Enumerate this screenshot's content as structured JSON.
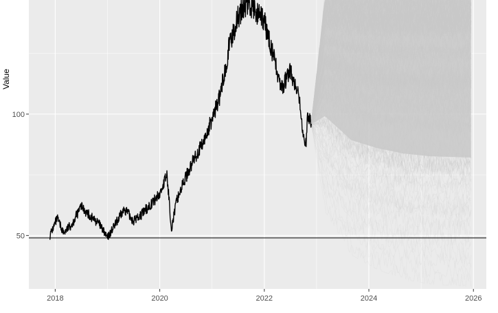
{
  "chart_data": {
    "type": "line",
    "title": "",
    "xlabel": "",
    "ylabel": "Value",
    "x_ticks": [
      "2018",
      "2020",
      "2022",
      "2024",
      "2026"
    ],
    "y_ticks": [
      "50",
      "100"
    ],
    "xlim": [
      "2017-07-01",
      "2026-04-01"
    ],
    "ylim": [
      28,
      147
    ],
    "grid": true,
    "colors": {
      "panel_background": "#ebebeb",
      "grid": "#ffffff",
      "history_line": "#000000",
      "simulation_band": "#c8c8c8",
      "reference_line": "#000000"
    },
    "reference_line": {
      "y": 49
    },
    "history": {
      "x": [
        "2017-11-25",
        "2018-01-15",
        "2018-03-01",
        "2018-05-01",
        "2018-07-01",
        "2018-09-01",
        "2018-11-01",
        "2019-01-01",
        "2019-03-01",
        "2019-05-01",
        "2019-07-01",
        "2019-09-01",
        "2019-11-01",
        "2020-01-01",
        "2020-02-20",
        "2020-03-23",
        "2020-05-01",
        "2020-07-01",
        "2020-09-01",
        "2020-11-01",
        "2021-01-01",
        "2021-03-01",
        "2021-05-01",
        "2021-07-01",
        "2021-09-01",
        "2021-11-01",
        "2022-01-01",
        "2022-03-01",
        "2022-05-01",
        "2022-07-01",
        "2022-09-01",
        "2022-10-15",
        "2022-11-01",
        "2022-11-25"
      ],
      "y": [
        50,
        57,
        51,
        55,
        62,
        58,
        55,
        49,
        55,
        61,
        56,
        59,
        63,
        67,
        75,
        53,
        65,
        74,
        82,
        88,
        98,
        108,
        128,
        140,
        146,
        142,
        138,
        125,
        110,
        118,
        106,
        85,
        100,
        96
      ]
    },
    "simulation": {
      "x_start": "2022-11-25",
      "x_end": "2025-12-15",
      "envelope_upper": [
        96,
        147,
        147,
        147,
        147,
        147,
        147
      ],
      "envelope_lower": [
        96,
        60,
        42,
        36,
        32,
        30,
        29
      ],
      "envelope_x": [
        "2022-11-25",
        "2023-03-01",
        "2023-09-01",
        "2024-03-01",
        "2024-09-01",
        "2025-03-01",
        "2025-12-15"
      ]
    }
  }
}
